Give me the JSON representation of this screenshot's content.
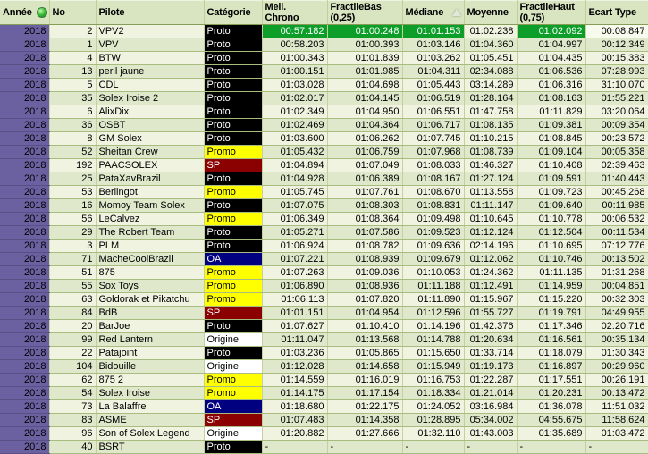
{
  "colors": {
    "header_bg": "#d9e4c1",
    "row_light": "#f0f3e0",
    "row_dark": "#dfe8cb",
    "grid_line": "#a9bc80",
    "year_column_bg": "#6b61a1",
    "best_value_highlight": "#0c9e28",
    "category_proto": "#000000",
    "category_promo": "#ffff00",
    "category_sp": "#8b0000",
    "category_oa": "#000080",
    "category_origine": "#ffffff"
  },
  "header": {
    "columns": [
      {
        "id": "annee",
        "lines": [
          "Année"
        ],
        "icon": "green-ball"
      },
      {
        "id": "no",
        "lines": [
          "No"
        ]
      },
      {
        "id": "pilote",
        "lines": [
          "Pilote"
        ]
      },
      {
        "id": "categorie",
        "lines": [
          "Catégorie"
        ]
      },
      {
        "id": "meil_chrono",
        "lines": [
          "Meil.",
          "Chrono"
        ]
      },
      {
        "id": "fractile_bas",
        "lines": [
          "FractileBas",
          "(0,25)"
        ]
      },
      {
        "id": "mediane",
        "lines": [
          "Médiane"
        ],
        "icon": "sort-asc"
      },
      {
        "id": "moyenne",
        "lines": [
          "Moyenne"
        ]
      },
      {
        "id": "fractile_haut",
        "lines": [
          "FractileHaut",
          "(0,75)"
        ]
      },
      {
        "id": "ecart_type",
        "lines": [
          "Ecart Type"
        ]
      }
    ]
  },
  "rows": [
    {
      "annee": "2018",
      "no": "2",
      "pilote": "VPV2",
      "categorie": "Proto",
      "meil_chrono": "00:57.182",
      "fractile_bas": "01:00.248",
      "mediane": "01:01.153",
      "moyenne": "01:02.238",
      "fractile_haut": "01:02.092",
      "ecart_type": "00:08.847",
      "highlight": [
        "meil_chrono",
        "fractile_bas",
        "mediane",
        "fractile_haut"
      ],
      "pale": [
        "ecart_type"
      ]
    },
    {
      "annee": "2018",
      "no": "1",
      "pilote": "VPV",
      "categorie": "Proto",
      "meil_chrono": "00:58.203",
      "fractile_bas": "01:00.393",
      "mediane": "01:03.146",
      "moyenne": "01:04.360",
      "fractile_haut": "01:04.997",
      "ecart_type": "00:12.349"
    },
    {
      "annee": "2018",
      "no": "4",
      "pilote": "BTW",
      "categorie": "Proto",
      "meil_chrono": "01:00.343",
      "fractile_bas": "01:01.839",
      "mediane": "01:03.262",
      "moyenne": "01:05.451",
      "fractile_haut": "01:04.435",
      "ecart_type": "00:15.383"
    },
    {
      "annee": "2018",
      "no": "13",
      "pilote": "peril jaune",
      "categorie": "Proto",
      "meil_chrono": "01:00.151",
      "fractile_bas": "01:01.985",
      "mediane": "01:04.311",
      "moyenne": "02:34.088",
      "fractile_haut": "01:06.536",
      "ecart_type": "07:28.993"
    },
    {
      "annee": "2018",
      "no": "5",
      "pilote": "CDL",
      "categorie": "Proto",
      "meil_chrono": "01:03.028",
      "fractile_bas": "01:04.698",
      "mediane": "01:05.443",
      "moyenne": "03:14.289",
      "fractile_haut": "01:06.316",
      "ecart_type": "31:10.070"
    },
    {
      "annee": "2018",
      "no": "35",
      "pilote": "Solex Iroise 2",
      "categorie": "Proto",
      "meil_chrono": "01:02.017",
      "fractile_bas": "01:04.145",
      "mediane": "01:06.519",
      "moyenne": "01:28.164",
      "fractile_haut": "01:08.163",
      "ecart_type": "01:55.221"
    },
    {
      "annee": "2018",
      "no": "6",
      "pilote": "AlixDix",
      "categorie": "Proto",
      "meil_chrono": "01:02.349",
      "fractile_bas": "01:04.950",
      "mediane": "01:06.551",
      "moyenne": "01:47.758",
      "fractile_haut": "01:11.829",
      "ecart_type": "03:20.064"
    },
    {
      "annee": "2018",
      "no": "36",
      "pilote": "OSBT",
      "categorie": "Proto",
      "meil_chrono": "01:02.469",
      "fractile_bas": "01:04.364",
      "mediane": "01:06.717",
      "moyenne": "01:08.135",
      "fractile_haut": "01:09.381",
      "ecart_type": "00:09.354"
    },
    {
      "annee": "2018",
      "no": "8",
      "pilote": "GM Solex",
      "categorie": "Proto",
      "meil_chrono": "01:03.600",
      "fractile_bas": "01:06.262",
      "mediane": "01:07.745",
      "moyenne": "01:10.215",
      "fractile_haut": "01:08.845",
      "ecart_type": "00:23.572"
    },
    {
      "annee": "2018",
      "no": "52",
      "pilote": "Sheitan Crew",
      "categorie": "Promo",
      "meil_chrono": "01:05.432",
      "fractile_bas": "01:06.759",
      "mediane": "01:07.968",
      "moyenne": "01:08.739",
      "fractile_haut": "01:09.104",
      "ecart_type": "00:05.358"
    },
    {
      "annee": "2018",
      "no": "192",
      "pilote": "PAACSOLEX",
      "categorie": "SP",
      "meil_chrono": "01:04.894",
      "fractile_bas": "01:07.049",
      "mediane": "01:08.033",
      "moyenne": "01:46.327",
      "fractile_haut": "01:10.408",
      "ecart_type": "02:39.463"
    },
    {
      "annee": "2018",
      "no": "25",
      "pilote": "PataXavBrazil",
      "categorie": "Proto",
      "meil_chrono": "01:04.928",
      "fractile_bas": "01:06.389",
      "mediane": "01:08.167",
      "moyenne": "01:27.124",
      "fractile_haut": "01:09.591",
      "ecart_type": "01:40.443"
    },
    {
      "annee": "2018",
      "no": "53",
      "pilote": "Berlingot",
      "categorie": "Promo",
      "meil_chrono": "01:05.745",
      "fractile_bas": "01:07.761",
      "mediane": "01:08.670",
      "moyenne": "01:13.558",
      "fractile_haut": "01:09.723",
      "ecart_type": "00:45.268"
    },
    {
      "annee": "2018",
      "no": "16",
      "pilote": "Momoy Team Solex",
      "categorie": "Proto",
      "meil_chrono": "01:07.075",
      "fractile_bas": "01:08.303",
      "mediane": "01:08.831",
      "moyenne": "01:11.147",
      "fractile_haut": "01:09.640",
      "ecart_type": "00:11.985"
    },
    {
      "annee": "2018",
      "no": "56",
      "pilote": "LeCalvez",
      "categorie": "Promo",
      "meil_chrono": "01:06.349",
      "fractile_bas": "01:08.364",
      "mediane": "01:09.498",
      "moyenne": "01:10.645",
      "fractile_haut": "01:10.778",
      "ecart_type": "00:06.532"
    },
    {
      "annee": "2018",
      "no": "29",
      "pilote": "The Robert Team",
      "categorie": "Proto",
      "meil_chrono": "01:05.271",
      "fractile_bas": "01:07.586",
      "mediane": "01:09.523",
      "moyenne": "01:12.124",
      "fractile_haut": "01:12.504",
      "ecart_type": "00:11.534"
    },
    {
      "annee": "2018",
      "no": "3",
      "pilote": "PLM",
      "categorie": "Proto",
      "meil_chrono": "01:06.924",
      "fractile_bas": "01:08.782",
      "mediane": "01:09.636",
      "moyenne": "02:14.196",
      "fractile_haut": "01:10.695",
      "ecart_type": "07:12.776"
    },
    {
      "annee": "2018",
      "no": "71",
      "pilote": "MacheCoolBrazil",
      "categorie": "OA",
      "meil_chrono": "01:07.221",
      "fractile_bas": "01:08.939",
      "mediane": "01:09.679",
      "moyenne": "01:12.062",
      "fractile_haut": "01:10.746",
      "ecart_type": "00:13.502"
    },
    {
      "annee": "2018",
      "no": "51",
      "pilote": "875",
      "pilote_align": "right",
      "categorie": "Promo",
      "meil_chrono": "01:07.263",
      "fractile_bas": "01:09.036",
      "mediane": "01:10.053",
      "moyenne": "01:24.362",
      "fractile_haut": "01:11.135",
      "ecart_type": "01:31.268"
    },
    {
      "annee": "2018",
      "no": "55",
      "pilote": "Sox Toys",
      "categorie": "Promo",
      "meil_chrono": "01:06.890",
      "fractile_bas": "01:08.936",
      "mediane": "01:11.188",
      "moyenne": "01:12.491",
      "fractile_haut": "01:14.959",
      "ecart_type": "00:04.851"
    },
    {
      "annee": "2018",
      "no": "63",
      "pilote": "Goldorak et Pikatchu",
      "categorie": "Promo",
      "meil_chrono": "01:06.113",
      "fractile_bas": "01:07.820",
      "mediane": "01:11.890",
      "moyenne": "01:15.967",
      "fractile_haut": "01:15.220",
      "ecart_type": "00:32.303"
    },
    {
      "annee": "2018",
      "no": "84",
      "pilote": "BdB",
      "categorie": "SP",
      "meil_chrono": "01:01.151",
      "fractile_bas": "01:04.954",
      "mediane": "01:12.596",
      "moyenne": "01:55.727",
      "fractile_haut": "01:19.791",
      "ecart_type": "04:49.955"
    },
    {
      "annee": "2018",
      "no": "20",
      "pilote": "BarJoe",
      "categorie": "Proto",
      "meil_chrono": "01:07.627",
      "fractile_bas": "01:10.410",
      "mediane": "01:14.196",
      "moyenne": "01:42.376",
      "fractile_haut": "01:17.346",
      "ecart_type": "02:20.716"
    },
    {
      "annee": "2018",
      "no": "99",
      "pilote": "Red Lantern",
      "categorie": "Origine",
      "meil_chrono": "01:11.047",
      "fractile_bas": "01:13.568",
      "mediane": "01:14.788",
      "moyenne": "01:20.634",
      "fractile_haut": "01:16.561",
      "ecart_type": "00:35.134"
    },
    {
      "annee": "2018",
      "no": "22",
      "pilote": "Patajoint",
      "categorie": "Proto",
      "meil_chrono": "01:03.236",
      "fractile_bas": "01:05.865",
      "mediane": "01:15.650",
      "moyenne": "01:33.714",
      "fractile_haut": "01:18.079",
      "ecart_type": "01:30.343"
    },
    {
      "annee": "2018",
      "no": "104",
      "pilote": "Bidouille",
      "categorie": "Origine",
      "meil_chrono": "01:12.028",
      "fractile_bas": "01:14.658",
      "mediane": "01:15.949",
      "moyenne": "01:19.173",
      "fractile_haut": "01:16.897",
      "ecart_type": "00:29.960"
    },
    {
      "annee": "2018",
      "no": "62",
      "pilote": "875 2",
      "pilote_align": "right",
      "categorie": "Promo",
      "meil_chrono": "01:14.559",
      "fractile_bas": "01:16.019",
      "mediane": "01:16.753",
      "moyenne": "01:22.287",
      "fractile_haut": "01:17.551",
      "ecart_type": "00:26.191"
    },
    {
      "annee": "2018",
      "no": "54",
      "pilote": "Solex Iroise",
      "categorie": "Promo",
      "meil_chrono": "01:14.175",
      "fractile_bas": "01:17.154",
      "mediane": "01:18.334",
      "moyenne": "01:21.014",
      "fractile_haut": "01:20.231",
      "ecart_type": "00:13.472"
    },
    {
      "annee": "2018",
      "no": "73",
      "pilote": "La Balaffre",
      "categorie": "OA",
      "meil_chrono": "01:18.680",
      "fractile_bas": "01:22.175",
      "mediane": "01:24.052",
      "moyenne": "03:16.984",
      "fractile_haut": "01:36.078",
      "ecart_type": "11:51.032"
    },
    {
      "annee": "2018",
      "no": "83",
      "pilote": "ASME",
      "categorie": "SP",
      "meil_chrono": "01:07.483",
      "fractile_bas": "01:14.358",
      "mediane": "01:28.895",
      "moyenne": "05:34.002",
      "fractile_haut": "04:55.675",
      "ecart_type": "11:58.624"
    },
    {
      "annee": "2018",
      "no": "96",
      "pilote": "Son of Solex Legend",
      "categorie": "Origine",
      "meil_chrono": "01:20.882",
      "fractile_bas": "01:27.666",
      "mediane": "01:32.110",
      "moyenne": "01:43.003",
      "fractile_haut": "01:35.689",
      "ecart_type": "01:03.472"
    },
    {
      "annee": "2018",
      "no": "40",
      "pilote": "BSRT",
      "categorie": "Proto",
      "meil_chrono": "-",
      "fractile_bas": "-",
      "mediane": "-",
      "moyenne": "-",
      "fractile_haut": "-",
      "ecart_type": "-"
    }
  ]
}
